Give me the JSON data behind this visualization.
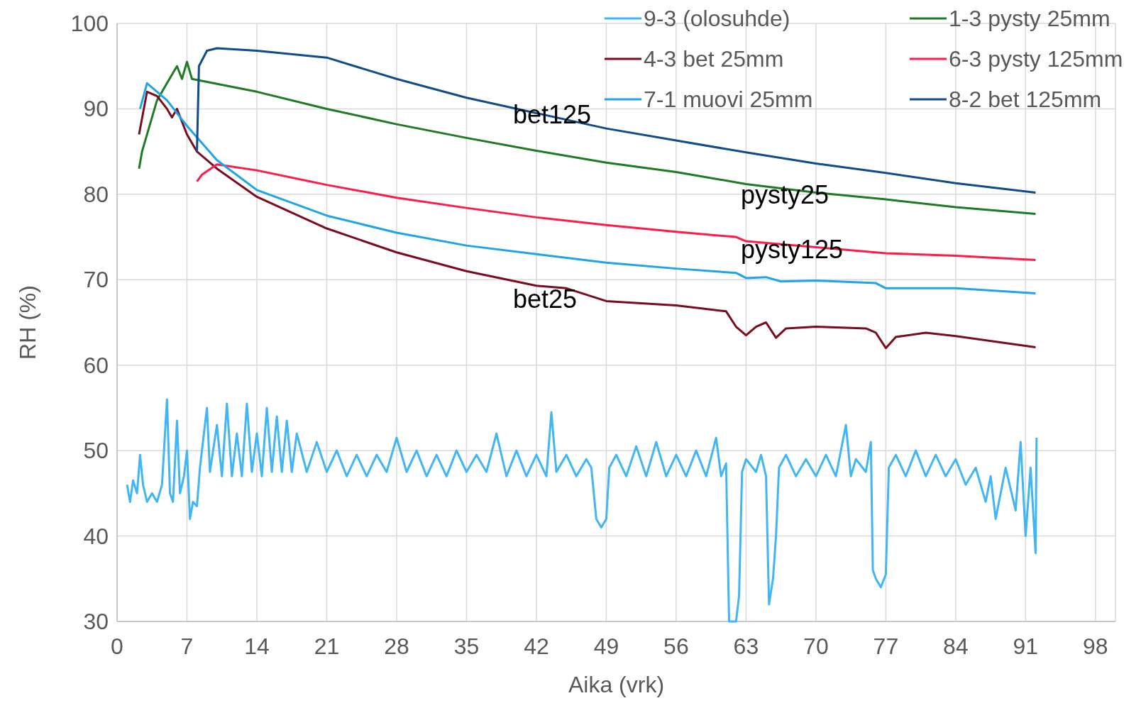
{
  "chart_data": {
    "type": "line",
    "xlabel": "Aika (vrk)",
    "ylabel": "RH (%)",
    "xlim": [
      0,
      100
    ],
    "xticks": [
      0,
      7,
      14,
      21,
      28,
      35,
      42,
      49,
      56,
      63,
      70,
      77,
      84,
      91,
      98
    ],
    "ylim": [
      30,
      100
    ],
    "yticks": [
      30,
      40,
      50,
      60,
      70,
      80,
      90,
      100
    ],
    "grid": true,
    "legend": "top right",
    "marker": "none",
    "line_style": "solid",
    "annotations": [
      "bet125",
      "pysty25",
      "pysty125",
      "bet25"
    ],
    "series": [
      {
        "name": "9-3 (olosuhde)",
        "color": "#41b6f5",
        "x": [
          1,
          1.3,
          1.6,
          2,
          2.3,
          2.6,
          3,
          3.5,
          4,
          4.5,
          5,
          5.3,
          5.6,
          6,
          6.3,
          6.7,
          7,
          7.3,
          7.6,
          8,
          8.3,
          9,
          9.3,
          10,
          10.5,
          11,
          11.5,
          12,
          12.5,
          13,
          13.5,
          14,
          14.5,
          15,
          15.5,
          16,
          16.5,
          17,
          17.5,
          18,
          19,
          20,
          21,
          22,
          23,
          24,
          25,
          26,
          27,
          28,
          29,
          30,
          31,
          32,
          33,
          34,
          35,
          36,
          37,
          38,
          39,
          40,
          41,
          42,
          43,
          43.5,
          44,
          45,
          46,
          47,
          47.5,
          48,
          48.5,
          49,
          49.3,
          50,
          51,
          52,
          53,
          54,
          55,
          56,
          57,
          58,
          59,
          60,
          60.5,
          61,
          61.3,
          62,
          62.3,
          62.6,
          63,
          64,
          64.5,
          65,
          65.3,
          65.7,
          66,
          66.3,
          67,
          68,
          69,
          70,
          71,
          72,
          73,
          73.5,
          74,
          75,
          75.5,
          75.7,
          76,
          76.5,
          77,
          77.3,
          78,
          79,
          80,
          81,
          82,
          83,
          84,
          85,
          86,
          87,
          87.5,
          88,
          89,
          90,
          90.5,
          91,
          91.5,
          92,
          92.1
        ],
        "values": [
          46,
          44,
          46.5,
          45,
          49.5,
          46,
          44,
          45,
          44,
          46,
          56,
          45,
          44,
          53.5,
          45,
          47,
          50,
          42,
          44,
          43.5,
          48,
          55,
          47.5,
          53,
          47,
          55.5,
          47,
          52,
          47,
          55.5,
          47.5,
          52,
          47,
          55,
          47.5,
          54,
          47.5,
          53.5,
          47.5,
          52,
          47.5,
          51,
          47.5,
          50,
          47,
          49.5,
          47,
          49.5,
          47.5,
          51.5,
          47.5,
          50,
          47,
          49.5,
          47,
          50,
          47.5,
          49.5,
          47.5,
          52,
          47,
          50,
          47,
          49.5,
          47,
          54.5,
          47.5,
          49.5,
          47,
          49,
          48,
          42,
          41,
          42,
          48,
          49.5,
          47,
          50.5,
          47,
          51,
          47,
          49.5,
          47,
          50,
          47,
          51.5,
          47,
          48.5,
          30,
          30,
          33,
          47.5,
          49,
          47.5,
          49.5,
          47,
          32,
          35,
          40,
          48,
          49.5,
          47,
          49,
          47,
          49.5,
          47,
          53,
          47,
          49,
          47.5,
          51,
          36,
          35,
          34,
          35.5,
          48,
          49.5,
          47,
          50,
          47,
          49.5,
          47,
          49,
          46,
          48,
          44,
          47,
          42,
          48,
          43,
          51,
          40,
          48,
          38,
          51.5
        ]
      },
      {
        "name": "1-3 pysty 25mm",
        "color": "#1e7a23",
        "x": [
          2.2,
          2.5,
          4,
          5,
          6,
          6.5,
          7,
          7.5,
          14,
          21,
          28,
          35,
          42,
          49,
          56,
          63,
          70,
          77,
          84,
          92
        ],
        "values": [
          83,
          85,
          91,
          93,
          95,
          93.5,
          95.5,
          93.5,
          92,
          90,
          88.2,
          86.6,
          85.1,
          83.7,
          82.6,
          81.2,
          80.2,
          79.4,
          78.5,
          77.7
        ]
      },
      {
        "name": "4-3 bet 25mm",
        "color": "#7b0c1e",
        "x": [
          2.2,
          3,
          4,
          5,
          5.5,
          6,
          7,
          8,
          10,
          14,
          21,
          28,
          35,
          42,
          45,
          49,
          56,
          61,
          62,
          63,
          64,
          65,
          66,
          67,
          70,
          75,
          76,
          77,
          78,
          81,
          84,
          92
        ],
        "values": [
          87,
          92,
          91.5,
          90,
          89,
          90,
          87,
          85,
          83,
          79.7,
          76,
          73.2,
          71,
          69.3,
          69,
          67.5,
          67,
          66.3,
          64.5,
          63.5,
          64.5,
          65,
          63.2,
          64.3,
          64.5,
          64.3,
          63.8,
          62,
          63.3,
          63.8,
          63.4,
          62.1
        ]
      },
      {
        "name": "6-3 pysty 125mm",
        "color": "#ff1a4a",
        "x": [
          8,
          8.5,
          10,
          14,
          21,
          28,
          35,
          42,
          49,
          56,
          62,
          63,
          70,
          77,
          84,
          92
        ],
        "values": [
          81.5,
          82.3,
          83.5,
          82.8,
          81.1,
          79.6,
          78.4,
          77.3,
          76.4,
          75.6,
          75,
          74.5,
          73.8,
          73.1,
          72.8,
          72.3
        ]
      },
      {
        "name": "7-1 muovi 25mm",
        "color": "#1ea5e8",
        "x": [
          2.3,
          3,
          5,
          7,
          10,
          14,
          21,
          28,
          35,
          42,
          49,
          56,
          62,
          63,
          65,
          66.5,
          70,
          76,
          77,
          84,
          92
        ],
        "values": [
          90,
          93,
          91,
          88,
          84,
          80.5,
          77.5,
          75.5,
          74,
          73,
          72,
          71.3,
          70.8,
          70.2,
          70.3,
          69.8,
          69.9,
          69.6,
          69,
          69,
          68.4
        ]
      },
      {
        "name": "8-2 bet 125mm",
        "color": "#0f4c8a",
        "x": [
          8,
          8.2,
          9,
          10,
          14,
          21,
          28,
          35,
          42,
          49,
          56,
          63,
          70,
          77,
          84,
          92
        ],
        "values": [
          85,
          95,
          96.8,
          97.1,
          96.8,
          96,
          93.5,
          91.3,
          89.5,
          87.7,
          86.3,
          84.9,
          83.6,
          82.5,
          81.3,
          80.2
        ]
      }
    ]
  }
}
